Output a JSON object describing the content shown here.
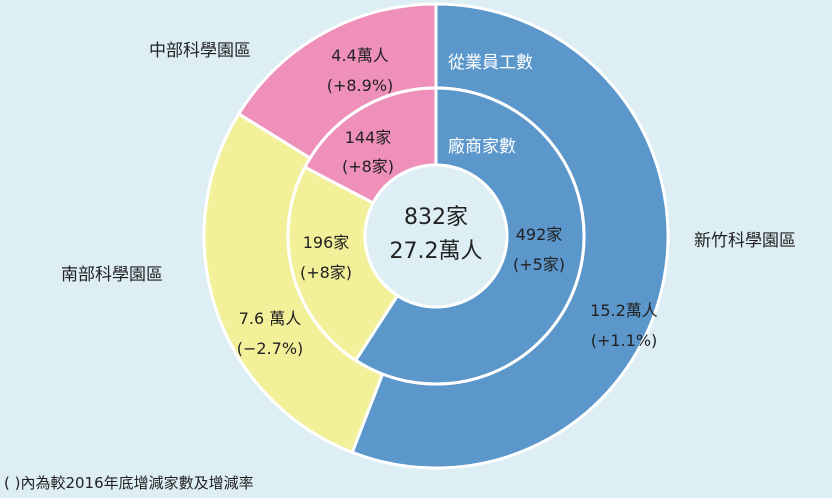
{
  "chart_data": {
    "type": "pie",
    "variant": "nested-donut",
    "center": {
      "line1": "832家",
      "line2": "27.2萬人"
    },
    "outer_ring": {
      "title": "從業員工數",
      "slices": [
        {
          "region": "新竹科學園區",
          "value": 15.2,
          "label": "15.2萬人",
          "change": "(+1.1%)",
          "color": "#5b97cb"
        },
        {
          "region": "南部科學園區",
          "value": 7.6,
          "label": "7.6 萬人",
          "change": "(−2.7%)",
          "color": "#f3f09a"
        },
        {
          "region": "中部科學園區",
          "value": 4.4,
          "label": "4.4萬人",
          "change": "(+8.9%)",
          "color": "#ef90bb"
        }
      ]
    },
    "inner_ring": {
      "title": "廠商家數",
      "slices": [
        {
          "region": "新竹科學園區",
          "value": 492,
          "label": "492家",
          "change": "(+5家)",
          "color": "#5b97cb"
        },
        {
          "region": "南部科學園區",
          "value": 196,
          "label": "196家",
          "change": "(+8家)",
          "color": "#f3f09a"
        },
        {
          "region": "中部科學園區",
          "value": 144,
          "label": "144家",
          "change": "(+8家)",
          "color": "#ef90bb"
        }
      ]
    },
    "region_labels": [
      "新竹科學園區",
      "南部科學園區",
      "中部科學園區"
    ],
    "footnote": "( )內為較2016年底增減家數及增減率",
    "center_color": "#ddeef5",
    "background": "#ddeef5",
    "stroke_color": "#ffffff"
  }
}
